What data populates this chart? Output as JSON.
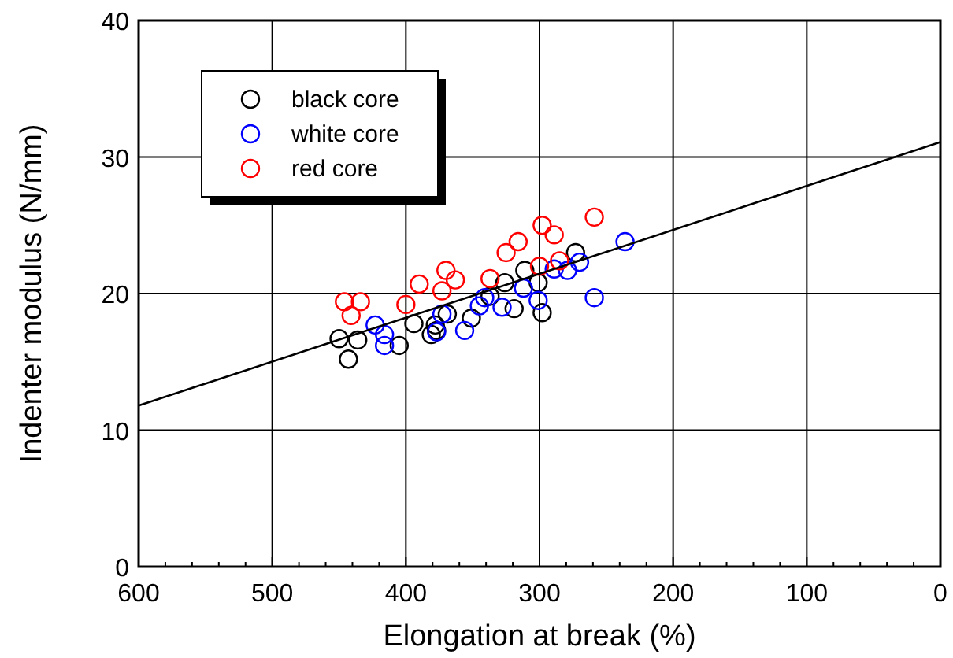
{
  "chart_data": {
    "type": "scatter",
    "xlabel": "Elongation at break (%)",
    "ylabel": "Indenter modulus (N/mm)",
    "xlim": [
      600,
      0
    ],
    "ylim": [
      0,
      40
    ],
    "xticks": [
      600,
      500,
      400,
      300,
      200,
      100,
      0
    ],
    "yticks": [
      0,
      10,
      20,
      30,
      40
    ],
    "grid": true,
    "legend": "top left",
    "marker": "circle",
    "series": [
      {
        "name": "black core",
        "color": "#000000",
        "x": [
          450,
          443,
          436,
          405,
          394,
          381,
          378,
          377,
          369,
          351,
          337,
          326,
          319,
          311,
          301,
          298,
          273
        ],
        "values": [
          16.7,
          15.2,
          16.6,
          16.2,
          17.8,
          17.0,
          17.7,
          17.3,
          18.5,
          18.2,
          19.8,
          20.8,
          18.9,
          21.7,
          20.8,
          18.6,
          23.0
        ]
      },
      {
        "name": "white core",
        "color": "#0000ff",
        "x": [
          423,
          416,
          416,
          377,
          373,
          356,
          345,
          341,
          328,
          312,
          301,
          289,
          279,
          270,
          259,
          236
        ],
        "values": [
          17.7,
          17.0,
          16.2,
          17.2,
          18.5,
          17.3,
          19.1,
          19.7,
          19.0,
          20.4,
          19.5,
          21.8,
          21.7,
          22.3,
          19.7,
          23.8
        ]
      },
      {
        "name": "red core",
        "color": "#ff0000",
        "x": [
          446,
          434,
          441,
          400,
          390,
          373,
          370,
          363,
          337,
          325,
          316,
          298,
          289,
          300,
          285,
          259
        ],
        "values": [
          19.4,
          19.4,
          18.4,
          19.2,
          20.7,
          20.2,
          21.7,
          21.0,
          21.1,
          23.0,
          23.8,
          25.0,
          24.3,
          22.0,
          22.4,
          25.6
        ]
      },
      {
        "type": "line",
        "color": "#000000",
        "marker": "none",
        "x": [
          600,
          0
        ],
        "values": [
          11.8,
          31.1
        ]
      }
    ]
  }
}
